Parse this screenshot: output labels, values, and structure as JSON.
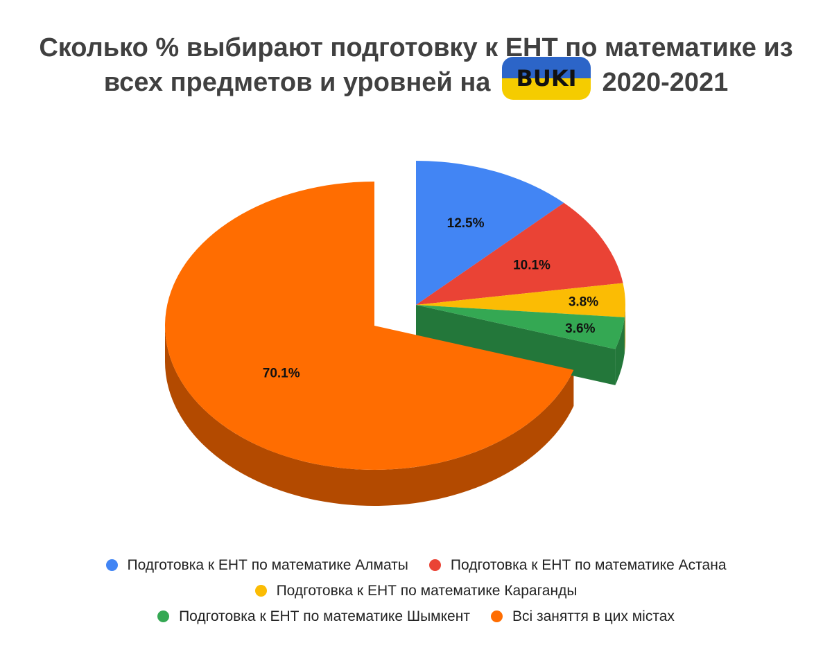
{
  "chart_data": {
    "type": "pie",
    "title_line1": "Сколько % выбирают подготовку к ЕНТ по математике из",
    "title_line2_before": "всех предметов и уровней на",
    "title_logo": "BUKI",
    "title_line2_after": "2020-2021",
    "slices": [
      {
        "label": "Подготовка к ЕНТ по математике Алматы",
        "value": 12.5,
        "value_label": "12.5%",
        "color": "#4285f4",
        "side_color": "#2d5fb0"
      },
      {
        "label": "Подготовка к ЕНТ по математике Астана",
        "value": 10.1,
        "value_label": "10.1%",
        "color": "#ea4335",
        "side_color": "#a52e24"
      },
      {
        "label": "Подготовка к ЕНТ по математике Караганды",
        "value": 3.8,
        "value_label": "3.8%",
        "color": "#fbbc04",
        "side_color": "#b58800"
      },
      {
        "label": "Подготовка к ЕНТ по математике Шымкент",
        "value": 3.6,
        "value_label": "3.6%",
        "color": "#34a853",
        "side_color": "#23773a"
      },
      {
        "label": "Всі заняття в цих містах",
        "value": 70.1,
        "value_label": "70.1%",
        "color": "#ff6d01",
        "side_color": "#b34a00"
      }
    ],
    "exploded": [
      "Подготовка к ЕНТ по математике Алматы",
      "Подготовка к ЕНТ по математике Астана",
      "Подготовка к ЕНТ по математике Караганды",
      "Подготовка к ЕНТ по математике Шымкент"
    ],
    "style": "3d",
    "legend_position": "bottom"
  }
}
